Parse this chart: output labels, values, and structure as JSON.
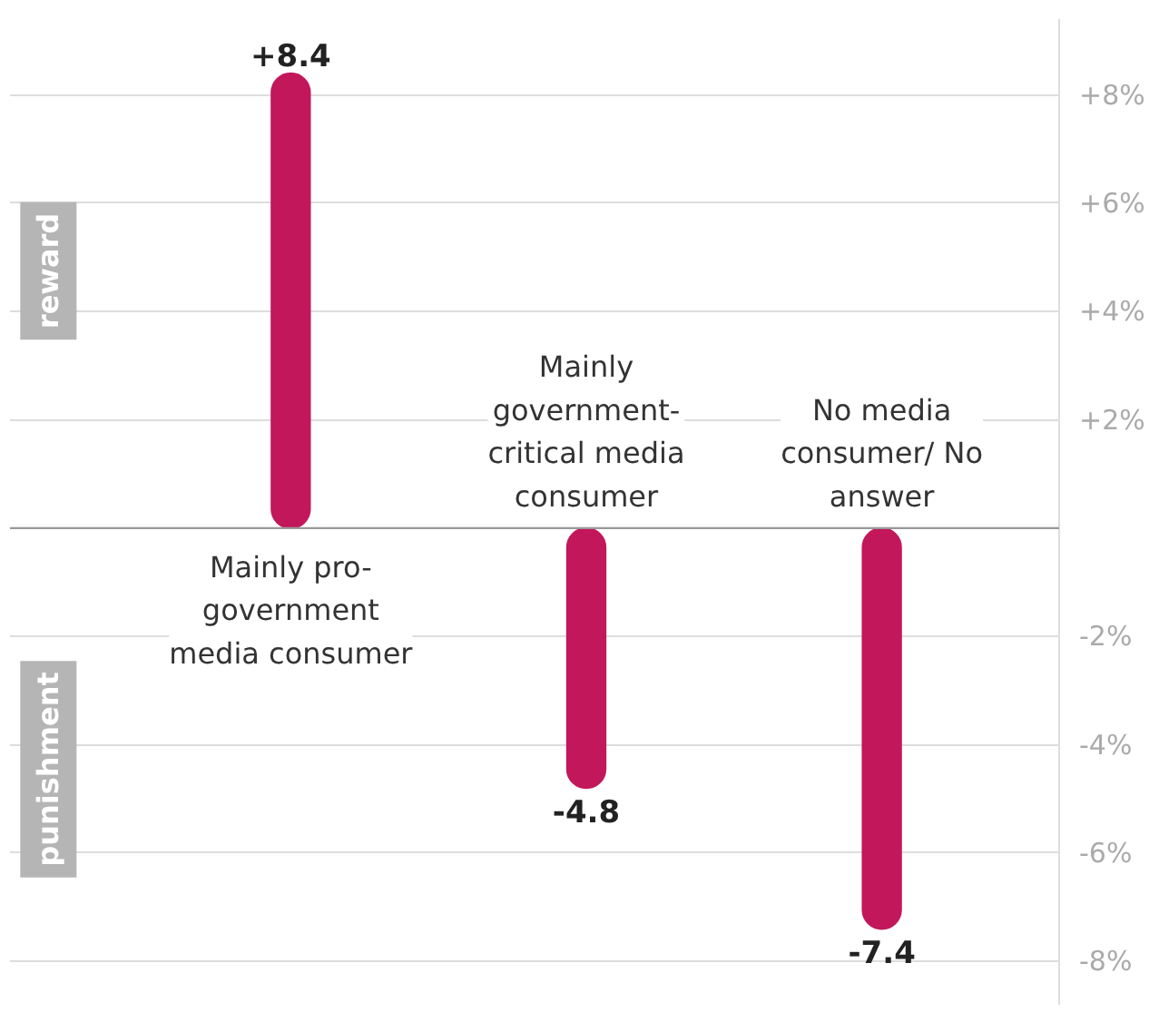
{
  "chart_data": {
    "type": "bar",
    "categories": [
      "Mainly pro-government media consumer",
      "Mainly government-critical media consumer",
      "No media consumer/ No answer"
    ],
    "values": [
      8.4,
      -4.8,
      -7.4
    ],
    "value_labels": [
      "+8.4",
      "-4.8",
      "-7.4"
    ],
    "color": "#c2185b",
    "ylim": [
      -8.8,
      9.4
    ],
    "yticks": [
      {
        "value": 8,
        "label": "+8%"
      },
      {
        "value": 6,
        "label": "+6%"
      },
      {
        "value": 4,
        "label": "+4%"
      },
      {
        "value": 2,
        "label": "+2%"
      },
      {
        "value": -2,
        "label": "-2%"
      },
      {
        "value": -4,
        "label": "-4%"
      },
      {
        "value": -6,
        "label": "-6%"
      },
      {
        "value": -8,
        "label": "-8%"
      }
    ],
    "grid": "y",
    "annotations": [
      "reward",
      "punishment"
    ]
  }
}
